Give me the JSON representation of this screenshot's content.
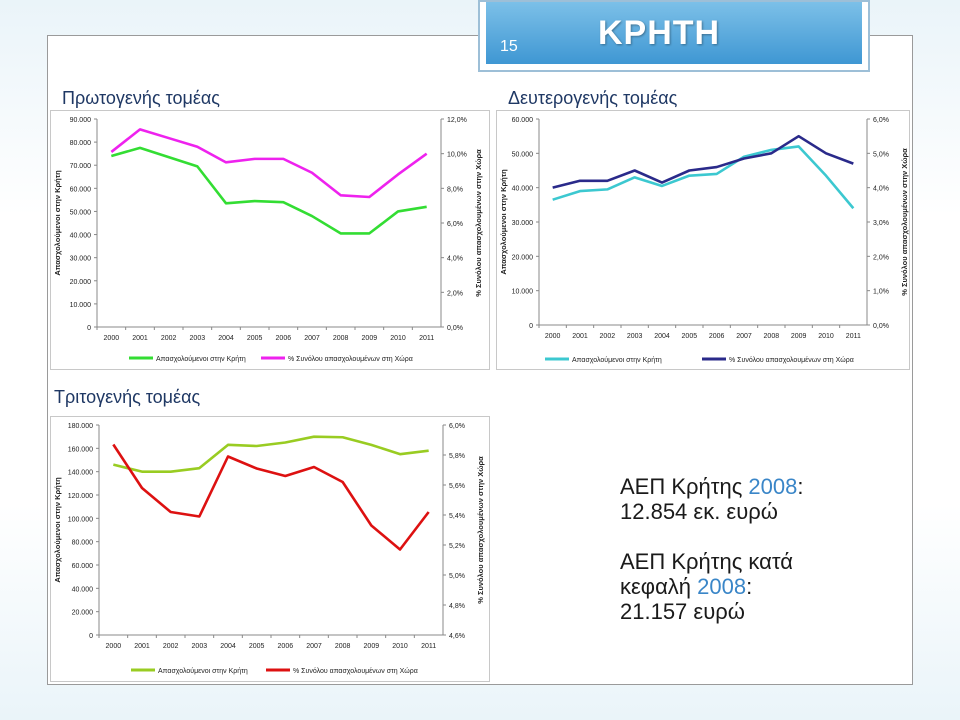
{
  "slide": {
    "number": "15",
    "title": "ΚΡΗΤΗ"
  },
  "headings": {
    "primary": "Πρωτογενής τομέας",
    "secondary": "Δευτερογενής τομέας",
    "tertiary": "Τριτογενής τομέας"
  },
  "info": {
    "line1_a": "ΑΕΠ Κρήτης ",
    "line1_year": "2008",
    "line1_b": ":",
    "line2": "12.854 εκ. ευρώ",
    "line3": "ΑΕΠ Κρήτης κατά",
    "line4_a": "κεφαλή ",
    "line4_year": "2008",
    "line4_b": ":",
    "line5": "21.157 ευρώ"
  },
  "chart_data": [
    {
      "type": "line",
      "id": "primary",
      "categories": [
        "2000",
        "2001",
        "2002",
        "2003",
        "2004",
        "2005",
        "2006",
        "2007",
        "2008",
        "2009",
        "2010",
        "2011"
      ],
      "ylabel": "Απασχολούμενοι στην Κρήτη",
      "y2label": "% Συνόλου απασχολουμένων στην Χώρα",
      "ylim": [
        0,
        90000
      ],
      "y2lim": [
        0,
        12
      ],
      "yticks": [
        "0",
        "10.000",
        "20.000",
        "30.000",
        "40.000",
        "50.000",
        "60.000",
        "70.000",
        "80.000",
        "90.000"
      ],
      "y2ticks": [
        "0,0%",
        "2,0%",
        "4,0%",
        "6,0%",
        "8,0%",
        "10,0%",
        "12,0%"
      ],
      "legend_position": "bottom",
      "series": [
        {
          "name": "Απασχολούμενοι στην Κρήτη",
          "axis": "left",
          "color": "#33dd33",
          "values": [
            74000,
            77500,
            73500,
            69500,
            53500,
            54500,
            54000,
            48000,
            40500,
            40500,
            50000,
            52000
          ]
        },
        {
          "name": "% Συνόλου απασχολουμένων στη Χώρα",
          "axis": "right",
          "color": "#ee22ee",
          "values": [
            10.1,
            11.4,
            10.9,
            10.4,
            9.5,
            9.7,
            9.7,
            8.9,
            7.6,
            7.5,
            8.8,
            10.0
          ]
        }
      ]
    },
    {
      "type": "line",
      "id": "secondary",
      "categories": [
        "2000",
        "2001",
        "2002",
        "2003",
        "2004",
        "2005",
        "2006",
        "2007",
        "2008",
        "2009",
        "2010",
        "2011"
      ],
      "ylabel": "Απασχολούμενοι στην Κρήτη",
      "y2label": "% Συνόλου απασχολουμένων στην Χώρα",
      "ylim": [
        0,
        60000
      ],
      "y2lim": [
        0,
        6
      ],
      "yticks": [
        "0",
        "10.000",
        "20.000",
        "30.000",
        "40.000",
        "50.000",
        "60.000"
      ],
      "y2ticks": [
        "0,0%",
        "1,0%",
        "2,0%",
        "3,0%",
        "4,0%",
        "5,0%",
        "6,0%"
      ],
      "legend_position": "bottom",
      "series": [
        {
          "name": "Απασχολούμενοι στην Κρήτη",
          "axis": "left",
          "color": "#3cc8d0",
          "values": [
            36500,
            39000,
            39500,
            43000,
            40500,
            43500,
            44000,
            49000,
            51000,
            52000,
            43500,
            34000
          ]
        },
        {
          "name": "% Συνόλου απασχολουμένων στη Χώρα",
          "axis": "right",
          "color": "#2a2a8a",
          "values": [
            4.0,
            4.2,
            4.2,
            4.5,
            4.15,
            4.5,
            4.6,
            4.85,
            5.0,
            5.5,
            5.0,
            4.7
          ]
        }
      ]
    },
    {
      "type": "line",
      "id": "tertiary",
      "categories": [
        "2000",
        "2001",
        "2002",
        "2003",
        "2004",
        "2005",
        "2006",
        "2007",
        "2008",
        "2009",
        "2010",
        "2011"
      ],
      "ylabel": "Απασχολούμενοι στην Κρήτη",
      "y2label": "% Συνόλου απασχολουμένων στην Χώρα",
      "ylim": [
        0,
        180000
      ],
      "y2lim": [
        4.6,
        6.0
      ],
      "yticks": [
        "0",
        "20.000",
        "40.000",
        "60.000",
        "80.000",
        "100.000",
        "120.000",
        "140.000",
        "160.000",
        "180.000"
      ],
      "y2ticks": [
        "4,6%",
        "4,8%",
        "5,0%",
        "5,2%",
        "5,4%",
        "5,6%",
        "5,8%",
        "6,0%"
      ],
      "legend_position": "bottom",
      "series": [
        {
          "name": "Απασχολούμενοι στην Κρήτη",
          "axis": "left",
          "color": "#99cc22",
          "values": [
            146000,
            140000,
            140000,
            143000,
            163000,
            162000,
            165000,
            170000,
            169500,
            163000,
            155000,
            158000
          ]
        },
        {
          "name": "% Συνόλου απασχολουμένων στη Χώρα",
          "axis": "right",
          "color": "#dd1111",
          "values": [
            5.87,
            5.58,
            5.42,
            5.39,
            5.79,
            5.71,
            5.66,
            5.72,
            5.62,
            5.33,
            5.17,
            5.42
          ]
        }
      ]
    }
  ],
  "colors": {
    "title_bg": "#3f97d3",
    "heading": "#1f3864",
    "accent": "#3a86c8"
  }
}
